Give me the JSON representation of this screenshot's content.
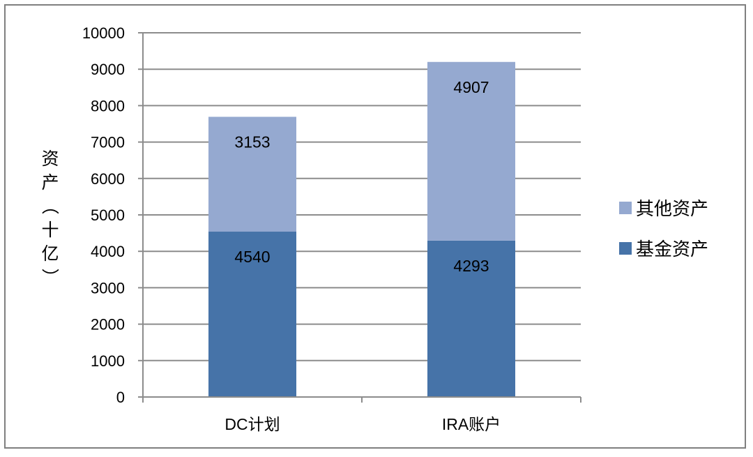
{
  "chart_data": {
    "type": "bar",
    "stacked": true,
    "categories": [
      "DC计划",
      "IRA账户"
    ],
    "series": [
      {
        "name": "基金资产",
        "values": [
          4540,
          4293
        ],
        "color": "#4673a8"
      },
      {
        "name": "其他资产",
        "values": [
          3153,
          4907
        ],
        "color": "#95a9d0"
      }
    ],
    "ylabel": "资产（十亿）",
    "ylim": [
      0,
      10000
    ],
    "yticks": [
      0,
      1000,
      2000,
      3000,
      4000,
      5000,
      6000,
      7000,
      8000,
      9000,
      10000
    ],
    "grid": true,
    "legend_position": "right",
    "data_labels": true
  }
}
